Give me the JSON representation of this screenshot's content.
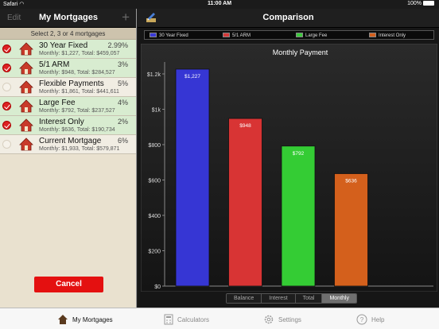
{
  "status": {
    "carrier": "Safari",
    "time": "11:00 AM",
    "battery": "100%"
  },
  "left": {
    "edit_label": "Edit",
    "title": "My Mortgages",
    "add_label": "+",
    "subheader": "Select 2, 3 or 4 mortgages",
    "items": [
      {
        "name": "30 Year Fixed",
        "rate": "2.99%",
        "detail": "Monthly: $1,227, Total: $459,057",
        "selected": true
      },
      {
        "name": "5/1 ARM",
        "rate": "3%",
        "detail": "Monthly: $948, Total: $284,527",
        "selected": true
      },
      {
        "name": "Flexible Payments",
        "rate": "5%",
        "detail": "Monthly: $1,861, Total: $441,611",
        "selected": false
      },
      {
        "name": "Large Fee",
        "rate": "4%",
        "detail": "Monthly: $792, Total: $237,527",
        "selected": true
      },
      {
        "name": "Interest Only",
        "rate": "2%",
        "detail": "Monthly: $636, Total: $190,734",
        "selected": true
      },
      {
        "name": "Current Mortgage",
        "rate": "6%",
        "detail": "Monthly: $1,933, Total: $579,871",
        "selected": false
      }
    ],
    "cancel_label": "Cancel"
  },
  "right": {
    "title": "Comparison",
    "legend": [
      {
        "label": "30 Year Fixed",
        "color": "#3a3ad6"
      },
      {
        "label": "5/1 ARM",
        "color": "#d43a3a"
      },
      {
        "label": "Large Fee",
        "color": "#3cc93c"
      },
      {
        "label": "Interest Only",
        "color": "#d4601e"
      }
    ],
    "segments": [
      "Balance",
      "Interest",
      "Total",
      "Monthly"
    ],
    "active_segment": "Monthly"
  },
  "chart_data": {
    "type": "bar",
    "title": "Monthly Payment",
    "categories": [
      "30 Year Fixed",
      "5/1 ARM",
      "Large Fee",
      "Interest Only"
    ],
    "values": [
      1227,
      948,
      792,
      636
    ],
    "labels": [
      "$1,227",
      "$948",
      "$792",
      "$636"
    ],
    "colors": [
      "#3636d4",
      "#d83434",
      "#34cc34",
      "#d4601c"
    ],
    "yticks": [
      0,
      200,
      400,
      600,
      800,
      1000,
      1200
    ],
    "ytick_labels": [
      "$0",
      "$200",
      "$400",
      "$600",
      "$800",
      "$1k",
      "$1.2k"
    ],
    "ylim": [
      0,
      1200
    ],
    "grid": false
  },
  "tabs": [
    {
      "label": "My Mortgages",
      "icon": "house-icon",
      "active": true
    },
    {
      "label": "Calculators",
      "icon": "calculator-icon",
      "active": false
    },
    {
      "label": "Settings",
      "icon": "gear-icon",
      "active": false
    },
    {
      "label": "Help",
      "icon": "help-icon",
      "active": false
    }
  ]
}
